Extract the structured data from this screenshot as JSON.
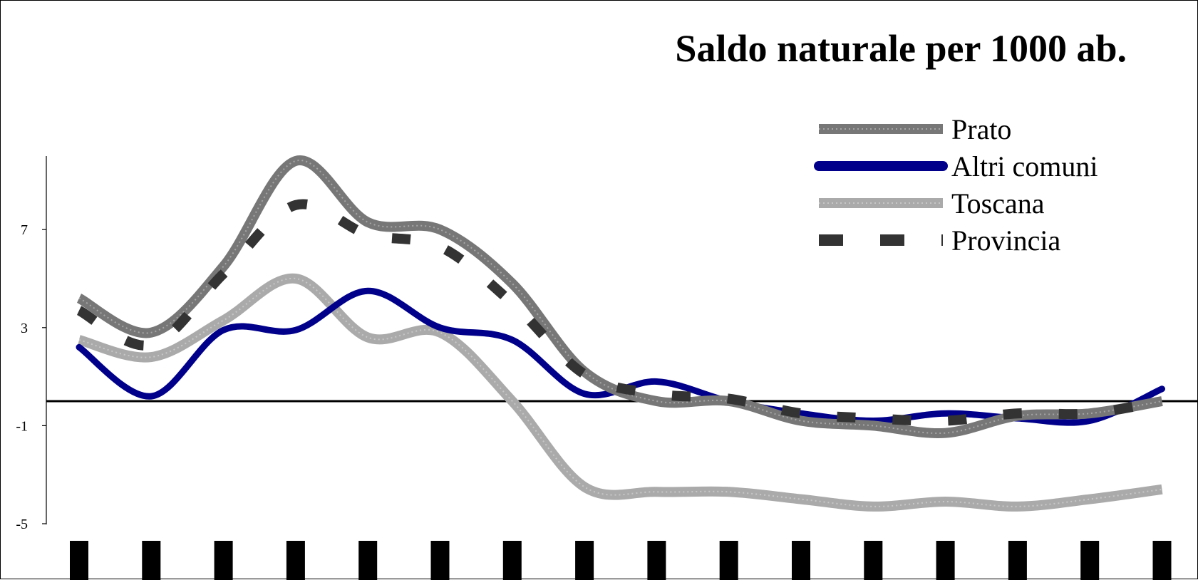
{
  "chart_data": {
    "type": "line",
    "title": "Saldo naturale per 1000 ab.",
    "xlabel": "",
    "ylabel": "",
    "ylim": [
      -5,
      10
    ],
    "yticks": [
      "7",
      "3",
      "-1",
      "-5"
    ],
    "ytick_values": [
      7,
      3,
      -1,
      -5
    ],
    "zero_line": 0,
    "legend_position": "top-right",
    "grid": false,
    "x": [
      0,
      1,
      2,
      3,
      4,
      5,
      6,
      7,
      8,
      9,
      10,
      11,
      12,
      13,
      14,
      15
    ],
    "series": [
      {
        "name": "Prato",
        "style": "dotted-thick",
        "color": "#777777",
        "values": [
          4.2,
          2.8,
          5.5,
          9.8,
          7.3,
          7.0,
          4.8,
          1.2,
          0.0,
          0.0,
          -0.8,
          -1.0,
          -1.3,
          -0.6,
          -0.5,
          0.0
        ]
      },
      {
        "name": "Altri comuni",
        "style": "solid",
        "color": "#00008B",
        "values": [
          2.2,
          0.2,
          2.9,
          2.9,
          4.5,
          3.0,
          2.5,
          0.3,
          0.8,
          0.0,
          -0.5,
          -0.8,
          -0.5,
          -0.7,
          -0.8,
          0.5
        ]
      },
      {
        "name": "Toscana",
        "style": "dotted-thick",
        "color": "#AAAAAA",
        "values": [
          2.5,
          1.8,
          3.3,
          5.0,
          2.6,
          2.8,
          0.0,
          -3.5,
          -3.7,
          -3.7,
          -4.0,
          -4.3,
          -4.1,
          -4.3,
          -4.0,
          -3.6
        ]
      },
      {
        "name": "Provincia",
        "style": "dashed",
        "color": "#333333",
        "values": [
          3.7,
          2.3,
          5.2,
          8.0,
          6.8,
          6.3,
          4.0,
          1.1,
          0.3,
          0.1,
          -0.5,
          -0.7,
          -0.8,
          -0.5,
          -0.5,
          0.0
        ]
      }
    ]
  }
}
